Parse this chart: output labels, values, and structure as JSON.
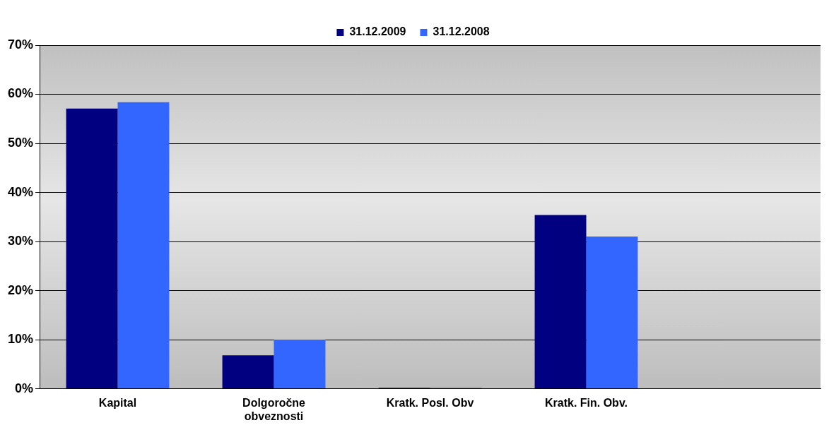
{
  "chart_data": {
    "type": "bar",
    "categories": [
      "Kapital",
      "Dolgoročne obveznosti",
      "Kratk. Posl. Obv",
      "Kratk. Fin. Obv.",
      null
    ],
    "series": [
      {
        "name": "31.12.2009",
        "color": "#000080",
        "values": [
          57.1,
          6.8,
          0.2,
          35.4,
          null
        ]
      },
      {
        "name": "31.12.2008",
        "color": "#3366ff",
        "values": [
          58.4,
          10.0,
          0.2,
          31.0,
          null
        ]
      }
    ],
    "ylim": [
      0,
      70
    ],
    "yticks": [
      {
        "value": 0,
        "label": "0%"
      },
      {
        "value": 10,
        "label": "10%"
      },
      {
        "value": 20,
        "label": "20%"
      },
      {
        "value": 30,
        "label": "30%"
      },
      {
        "value": 40,
        "label": "40%"
      },
      {
        "value": 50,
        "label": "50%"
      },
      {
        "value": 60,
        "label": "60%"
      },
      {
        "value": 70,
        "label": "70%"
      }
    ],
    "grid": "y",
    "legend": "top"
  }
}
